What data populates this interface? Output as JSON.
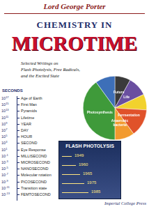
{
  "header": {
    "author": "Lord George Porter",
    "title_line1": "CHEMISTRY IN",
    "title_line2": "MICROTIME",
    "subtitle": [
      "Selected Writings on",
      "Flash Photolysis, Free Radicals,",
      "and the Excited State"
    ],
    "publisher": "Imperial College Press"
  },
  "timeline": {
    "heading": "SECONDS",
    "base": "10",
    "rows": [
      {
        "power": 17,
        "label": "Age of Earth"
      },
      {
        "power": 15,
        "label": "First Man"
      },
      {
        "power": 13,
        "label": "Pyramids"
      },
      {
        "power": 11,
        "label": "Lifetime"
      },
      {
        "power": 9,
        "label": "YEAR"
      },
      {
        "power": 7,
        "label": "DAY"
      },
      {
        "power": 5,
        "label": "HOUR"
      },
      {
        "power": 3,
        "label": "SECOND"
      },
      {
        "power": 1,
        "label": "Eye Response"
      },
      {
        "power": -1,
        "label": "MILLISECOND"
      },
      {
        "power": -3,
        "label": "MICROSECOND"
      },
      {
        "power": -5,
        "label": "NANOSECOND"
      },
      {
        "power": -7,
        "label": "Molecular rotation"
      },
      {
        "power": -9,
        "label": "PICOSECOND"
      },
      {
        "power": -11,
        "label": "Transition state"
      },
      {
        "power": -13,
        "label": "FEMTOSECOND"
      }
    ]
  },
  "flash_box": {
    "title": "FLASH PHOTOLYSIS",
    "years": [
      1949,
      1960,
      1965,
      1975,
      1985
    ]
  },
  "chart_data": {
    "type": "pie",
    "categories": [
      "Future",
      "Life",
      null,
      "Fermentation",
      "Anaerobic bacteria",
      "Photosynthesis",
      null
    ],
    "values": [
      8,
      10,
      8,
      14,
      10,
      40,
      10
    ],
    "colors": [
      "#3a3a3a",
      "#6a4fa0",
      "#f2d22e",
      "#e0522a",
      "#f29a2e",
      "#3f9a3a",
      "#3d6fb8"
    ]
  }
}
